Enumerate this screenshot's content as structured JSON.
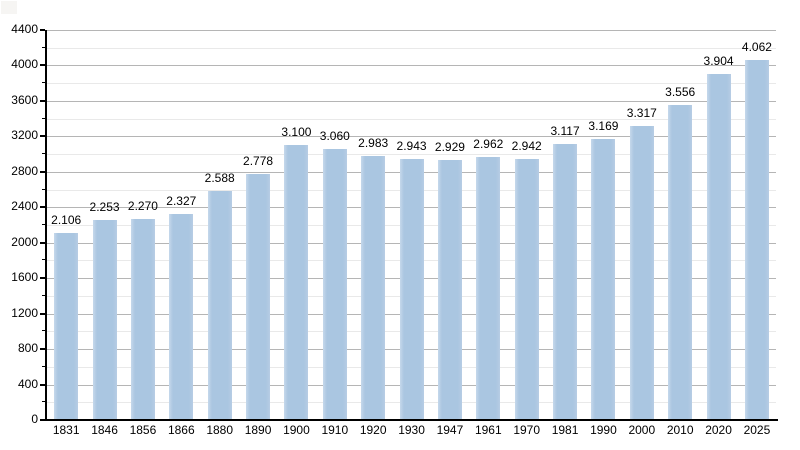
{
  "page": {
    "background_color": "#ffffff"
  },
  "chart_data": {
    "type": "bar",
    "title": "",
    "xlabel": "",
    "ylabel": "",
    "categories": [
      "1831",
      "1846",
      "1856",
      "1866",
      "1880",
      "1890",
      "1900",
      "1910",
      "1920",
      "1930",
      "1947",
      "1961",
      "1970",
      "1981",
      "1990",
      "2000",
      "2010",
      "2020",
      "2025"
    ],
    "values": [
      2106,
      2253,
      2270,
      2327,
      2588,
      2778,
      3100,
      3060,
      2983,
      2943,
      2929,
      2962,
      2942,
      3117,
      3169,
      3317,
      3556,
      3904,
      4062
    ],
    "value_labels": [
      "2.106",
      "2.253",
      "2.270",
      "2.327",
      "2.588",
      "2.778",
      "3.100",
      "3.060",
      "2.983",
      "2.943",
      "2.929",
      "2.962",
      "2.942",
      "3.117",
      "3.169",
      "3.317",
      "3.556",
      "3.904",
      "4.062"
    ],
    "ylim": [
      0,
      4400
    ],
    "y_major_step": 400,
    "y_minor_step": 200,
    "y_tick_labels": [
      "0",
      "400",
      "800",
      "1200",
      "1600",
      "2000",
      "2400",
      "2800",
      "3200",
      "3600",
      "4000",
      "4400"
    ],
    "grid": "on",
    "legend": "none",
    "bar_color": "#aac6e1",
    "bar_edge_color": "#c6d8eb",
    "major_grid_color": "#b5b5b5",
    "minor_grid_color": "#e9e9e9",
    "axis_color": "#000000",
    "text_color": "#000000"
  }
}
